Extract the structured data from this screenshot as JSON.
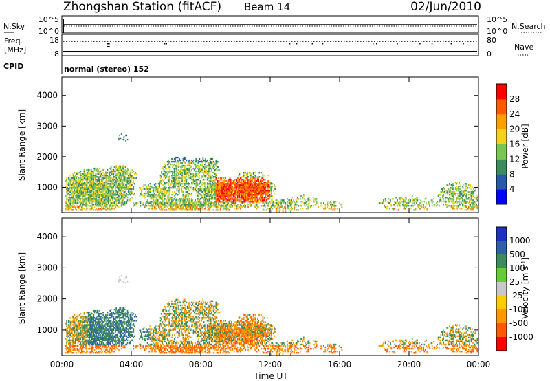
{
  "header": {
    "station": "Zhongshan Station (fitACF)",
    "beam": "Beam 14",
    "date": "02/Jun/2010"
  },
  "nsky_panel": {
    "left_label": "N.Sky",
    "left_ticks": [
      "10^5",
      "10^0"
    ],
    "right_ticks": [
      "10^5",
      "10^0"
    ],
    "right_label": "N.Search"
  },
  "freq_panel": {
    "left_label_line1": "Freq.",
    "left_label_line2": "[MHz]",
    "left_ticks": [
      "18",
      "8"
    ],
    "right_ticks": [
      "80",
      "0"
    ],
    "right_label": "Nave"
  },
  "cpid": {
    "label": "CPID",
    "value": "normal (stereo) 152"
  },
  "chart_data": [
    {
      "type": "heatmap",
      "title": "",
      "ylabel": "Slant Range [km]",
      "xlabel": "",
      "x_range_hours": [
        0,
        24
      ],
      "ylim": [
        180,
        4600
      ],
      "yticks": [
        "1000",
        "2000",
        "3000",
        "4000"
      ],
      "colorbar": {
        "label": "Power [dB]",
        "ticks": [
          "4",
          "8",
          "12",
          "16",
          "20",
          "24",
          "28"
        ],
        "colors": [
          "#0000ff",
          "#2a58aa",
          "#3c8a5e",
          "#7ac654",
          "#f2d21e",
          "#ff9e00",
          "#ff5a00",
          "#ff0000"
        ]
      }
    },
    {
      "type": "heatmap",
      "title": "",
      "ylabel": "Slant Range [km]",
      "xlabel": "Time UT",
      "x_range_hours": [
        0,
        24
      ],
      "ylim": [
        180,
        4600
      ],
      "yticks": [
        "1000",
        "2000",
        "3000",
        "4000"
      ],
      "xticks": [
        "00:00",
        "04:00",
        "08:00",
        "12:00",
        "16:00",
        "20:00",
        "00:00"
      ],
      "colorbar": {
        "label": "Velocity [m s",
        "label_sup": "-1",
        "label_end": "]",
        "ticks": [
          "1000",
          "500",
          "100",
          "25",
          "-25",
          "-100",
          "-500",
          "-1000"
        ],
        "colors": [
          "#2030c0",
          "#3060a8",
          "#3c8a5e",
          "#66cc33",
          "#c8c8c8",
          "#ffcc00",
          "#ff9900",
          "#ff5a00",
          "#ff0000"
        ]
      }
    }
  ]
}
